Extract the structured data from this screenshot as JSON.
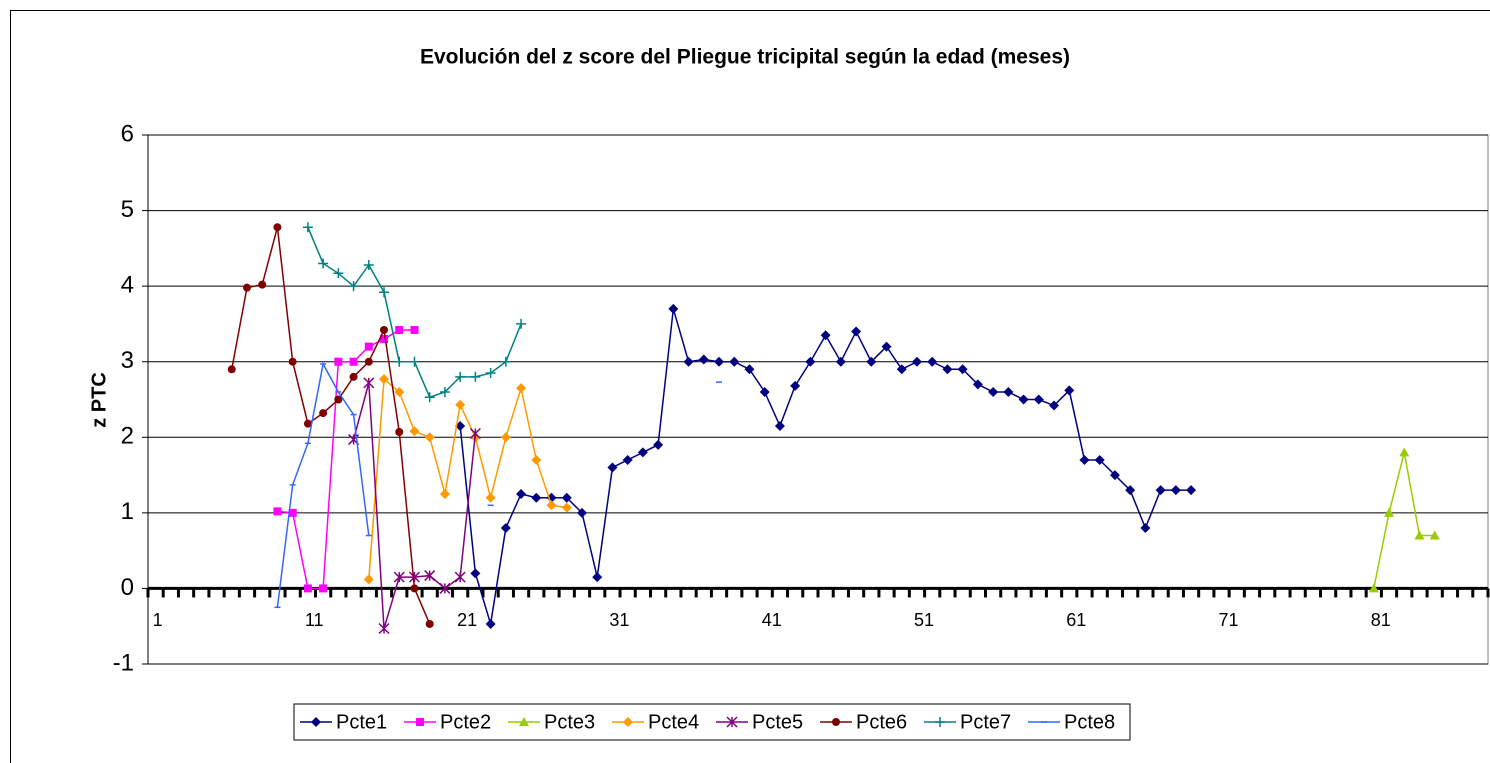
{
  "chart_data": {
    "type": "line",
    "title": "Evolución del z score del Pliegue tricipital según la edad (meses)",
    "ylabel": "z PTC",
    "x": [
      1,
      2,
      3,
      4,
      5,
      6,
      7,
      8,
      9,
      10,
      11,
      12,
      13,
      14,
      15,
      16,
      17,
      18,
      19,
      20,
      21,
      22,
      23,
      24,
      25,
      26,
      27,
      28,
      29,
      30,
      31,
      32,
      33,
      34,
      35,
      36,
      37,
      38,
      39,
      40,
      41,
      42,
      43,
      44,
      45,
      46,
      47,
      48,
      49,
      50,
      51,
      52,
      53,
      54,
      55,
      56,
      57,
      58,
      59,
      60,
      61,
      62,
      63,
      64,
      65,
      66,
      67,
      68,
      69,
      70,
      71,
      72,
      73,
      74,
      75,
      76,
      77,
      78,
      79,
      80,
      81,
      82,
      83,
      84,
      85,
      86,
      87,
      88
    ],
    "xlim": [
      0.5,
      88.5
    ],
    "xticks": [
      1,
      11,
      21,
      31,
      41,
      51,
      61,
      71,
      81
    ],
    "ylim": [
      -1,
      6
    ],
    "yticks": [
      -1,
      0,
      1,
      2,
      3,
      4,
      5,
      6
    ],
    "grid": true,
    "legend": "bottom",
    "series": [
      {
        "name": "Pcte1",
        "color": "#000080",
        "marker": "diamond",
        "values": [
          null,
          null,
          null,
          null,
          null,
          null,
          null,
          null,
          null,
          null,
          null,
          null,
          null,
          null,
          null,
          null,
          null,
          null,
          null,
          null,
          2.15,
          0.2,
          -0.47,
          0.8,
          1.25,
          1.2,
          1.2,
          1.2,
          1.0,
          0.15,
          1.6,
          1.7,
          1.8,
          1.9,
          3.7,
          3.0,
          3.03,
          3.0,
          3.0,
          2.9,
          2.6,
          2.15,
          2.68,
          3.0,
          3.35,
          3.0,
          3.4,
          3.0,
          3.2,
          2.9,
          3.0,
          3.0,
          2.9,
          2.9,
          2.7,
          2.6,
          2.6,
          2.5,
          2.5,
          2.42,
          2.62,
          1.7,
          1.7,
          1.5,
          1.3,
          0.8,
          1.3,
          1.3,
          1.3,
          null,
          null,
          null,
          null,
          null,
          null,
          null,
          null,
          null,
          null,
          null,
          null,
          null,
          null,
          null,
          null,
          null,
          null,
          null
        ]
      },
      {
        "name": "Pcte2",
        "color": "#ff00ff",
        "marker": "square",
        "values": [
          null,
          null,
          null,
          null,
          null,
          null,
          null,
          null,
          1.02,
          1.0,
          0,
          0,
          3.0,
          3.0,
          3.2,
          3.3,
          3.42,
          3.42,
          null,
          null,
          null,
          null,
          null,
          null,
          null,
          null,
          null,
          null,
          null,
          null,
          null,
          null,
          null,
          null,
          null,
          null,
          null,
          null,
          null,
          null,
          null,
          null,
          null,
          null,
          null,
          null,
          null,
          null,
          null,
          null,
          null,
          null,
          null,
          null,
          null,
          null,
          null,
          null,
          null,
          null,
          null,
          null,
          null,
          null,
          null,
          null,
          null,
          null,
          null,
          null,
          null,
          null,
          null,
          null,
          null,
          null,
          null,
          null,
          null,
          null,
          null,
          null,
          null,
          null,
          null,
          null,
          null,
          null
        ]
      },
      {
        "name": "Pcte3",
        "color": "#99cc00",
        "marker": "triangle",
        "values": [
          null,
          null,
          null,
          null,
          null,
          null,
          null,
          null,
          null,
          null,
          null,
          null,
          null,
          null,
          null,
          null,
          null,
          null,
          null,
          null,
          null,
          null,
          null,
          null,
          null,
          null,
          null,
          null,
          null,
          null,
          null,
          null,
          null,
          null,
          null,
          null,
          null,
          null,
          null,
          null,
          null,
          null,
          null,
          null,
          null,
          null,
          null,
          null,
          null,
          null,
          null,
          null,
          null,
          null,
          null,
          null,
          null,
          null,
          null,
          null,
          null,
          null,
          null,
          null,
          null,
          null,
          null,
          null,
          null,
          null,
          null,
          null,
          null,
          null,
          null,
          null,
          null,
          null,
          null,
          null,
          0,
          1.0,
          1.8,
          0.7,
          0.7,
          null,
          null,
          null
        ]
      },
      {
        "name": "Pcte4",
        "color": "#ff9900",
        "marker": "diamond",
        "values": [
          null,
          null,
          null,
          null,
          null,
          null,
          null,
          null,
          null,
          null,
          null,
          null,
          null,
          null,
          0.12,
          2.77,
          2.6,
          2.08,
          2.0,
          1.25,
          2.43,
          2.0,
          1.2,
          2.0,
          2.65,
          1.7,
          1.1,
          1.07,
          null,
          null,
          null,
          null,
          null,
          null,
          null,
          null,
          null,
          null,
          null,
          null,
          null,
          null,
          null,
          null,
          null,
          null,
          null,
          null,
          null,
          null,
          null,
          null,
          null,
          null,
          null,
          null,
          null,
          null,
          null,
          null,
          null,
          null,
          null,
          null,
          null,
          null,
          null,
          null,
          null,
          null,
          null,
          null,
          null,
          null,
          null,
          null,
          null,
          null,
          null,
          null,
          null,
          null,
          null,
          null,
          null,
          null,
          null,
          null
        ]
      },
      {
        "name": "Pcte5",
        "color": "#800080",
        "marker": "star",
        "values": [
          null,
          null,
          null,
          null,
          null,
          null,
          null,
          null,
          null,
          null,
          null,
          null,
          null,
          1.97,
          2.72,
          -0.53,
          0.15,
          0.15,
          0.17,
          0,
          0.15,
          2.05,
          null,
          null,
          null,
          null,
          null,
          null,
          null,
          null,
          null,
          null,
          null,
          null,
          null,
          null,
          null,
          null,
          null,
          null,
          null,
          null,
          null,
          null,
          null,
          null,
          null,
          null,
          null,
          null,
          null,
          null,
          null,
          null,
          null,
          null,
          null,
          null,
          null,
          null,
          null,
          null,
          null,
          null,
          null,
          null,
          null,
          null,
          null,
          null,
          null,
          null,
          null,
          null,
          null,
          null,
          null,
          null,
          null,
          null,
          null,
          null,
          null,
          null,
          null,
          null,
          null,
          null
        ]
      },
      {
        "name": "Pcte6",
        "color": "#800000",
        "marker": "circle",
        "values": [
          null,
          null,
          null,
          null,
          null,
          2.9,
          3.98,
          4.02,
          4.78,
          3.0,
          2.18,
          2.32,
          2.5,
          2.8,
          3.0,
          3.42,
          2.07,
          0,
          -0.47,
          null,
          null,
          null,
          null,
          null,
          null,
          null,
          null,
          null,
          null,
          null,
          null,
          null,
          null,
          null,
          null,
          null,
          null,
          null,
          null,
          null,
          null,
          null,
          null,
          null,
          null,
          null,
          null,
          null,
          null,
          null,
          null,
          null,
          null,
          null,
          null,
          null,
          null,
          null,
          null,
          null,
          null,
          null,
          null,
          null,
          null,
          null,
          null,
          null,
          null,
          null,
          null,
          null,
          null,
          null,
          null,
          null,
          null,
          null,
          null,
          null,
          null,
          null,
          null,
          null,
          null,
          null,
          null,
          null
        ]
      },
      {
        "name": "Pcte7",
        "color": "#008080",
        "marker": "plus",
        "values": [
          null,
          null,
          null,
          null,
          null,
          null,
          null,
          null,
          null,
          null,
          4.78,
          4.3,
          4.17,
          4.0,
          4.28,
          3.92,
          3.0,
          3.0,
          2.53,
          2.6,
          2.8,
          2.8,
          2.85,
          3.0,
          3.5,
          null,
          null,
          null,
          null,
          null,
          null,
          null,
          null,
          null,
          null,
          null,
          null,
          null,
          null,
          null,
          null,
          null,
          null,
          null,
          null,
          null,
          null,
          null,
          null,
          null,
          null,
          null,
          null,
          null,
          null,
          null,
          null,
          null,
          null,
          null,
          null,
          null,
          null,
          null,
          null,
          null,
          null,
          null,
          null,
          null,
          null,
          null,
          null,
          null,
          null,
          null,
          null,
          null,
          null,
          null,
          null,
          null,
          null,
          null,
          null,
          null,
          null,
          null
        ]
      },
      {
        "name": "Pcte8",
        "color": "#3366ff",
        "marker": "dash",
        "values": [
          null,
          null,
          null,
          null,
          null,
          null,
          null,
          null,
          -0.25,
          1.37,
          1.92,
          2.97,
          2.6,
          2.3,
          0.7,
          null,
          null,
          null,
          null,
          null,
          null,
          null,
          1.1,
          null,
          null,
          null,
          null,
          null,
          null,
          null,
          null,
          null,
          null,
          null,
          null,
          null,
          null,
          2.73,
          null,
          null,
          null,
          null,
          null,
          null,
          null,
          null,
          null,
          null,
          null,
          null,
          null,
          null,
          null,
          null,
          null,
          null,
          null,
          null,
          null,
          null,
          null,
          null,
          null,
          null,
          null,
          null,
          null,
          null,
          null,
          null,
          null,
          null,
          null,
          null,
          null,
          null,
          null,
          null,
          null,
          null,
          null,
          null,
          null,
          null,
          null,
          null,
          null,
          null
        ]
      }
    ]
  }
}
